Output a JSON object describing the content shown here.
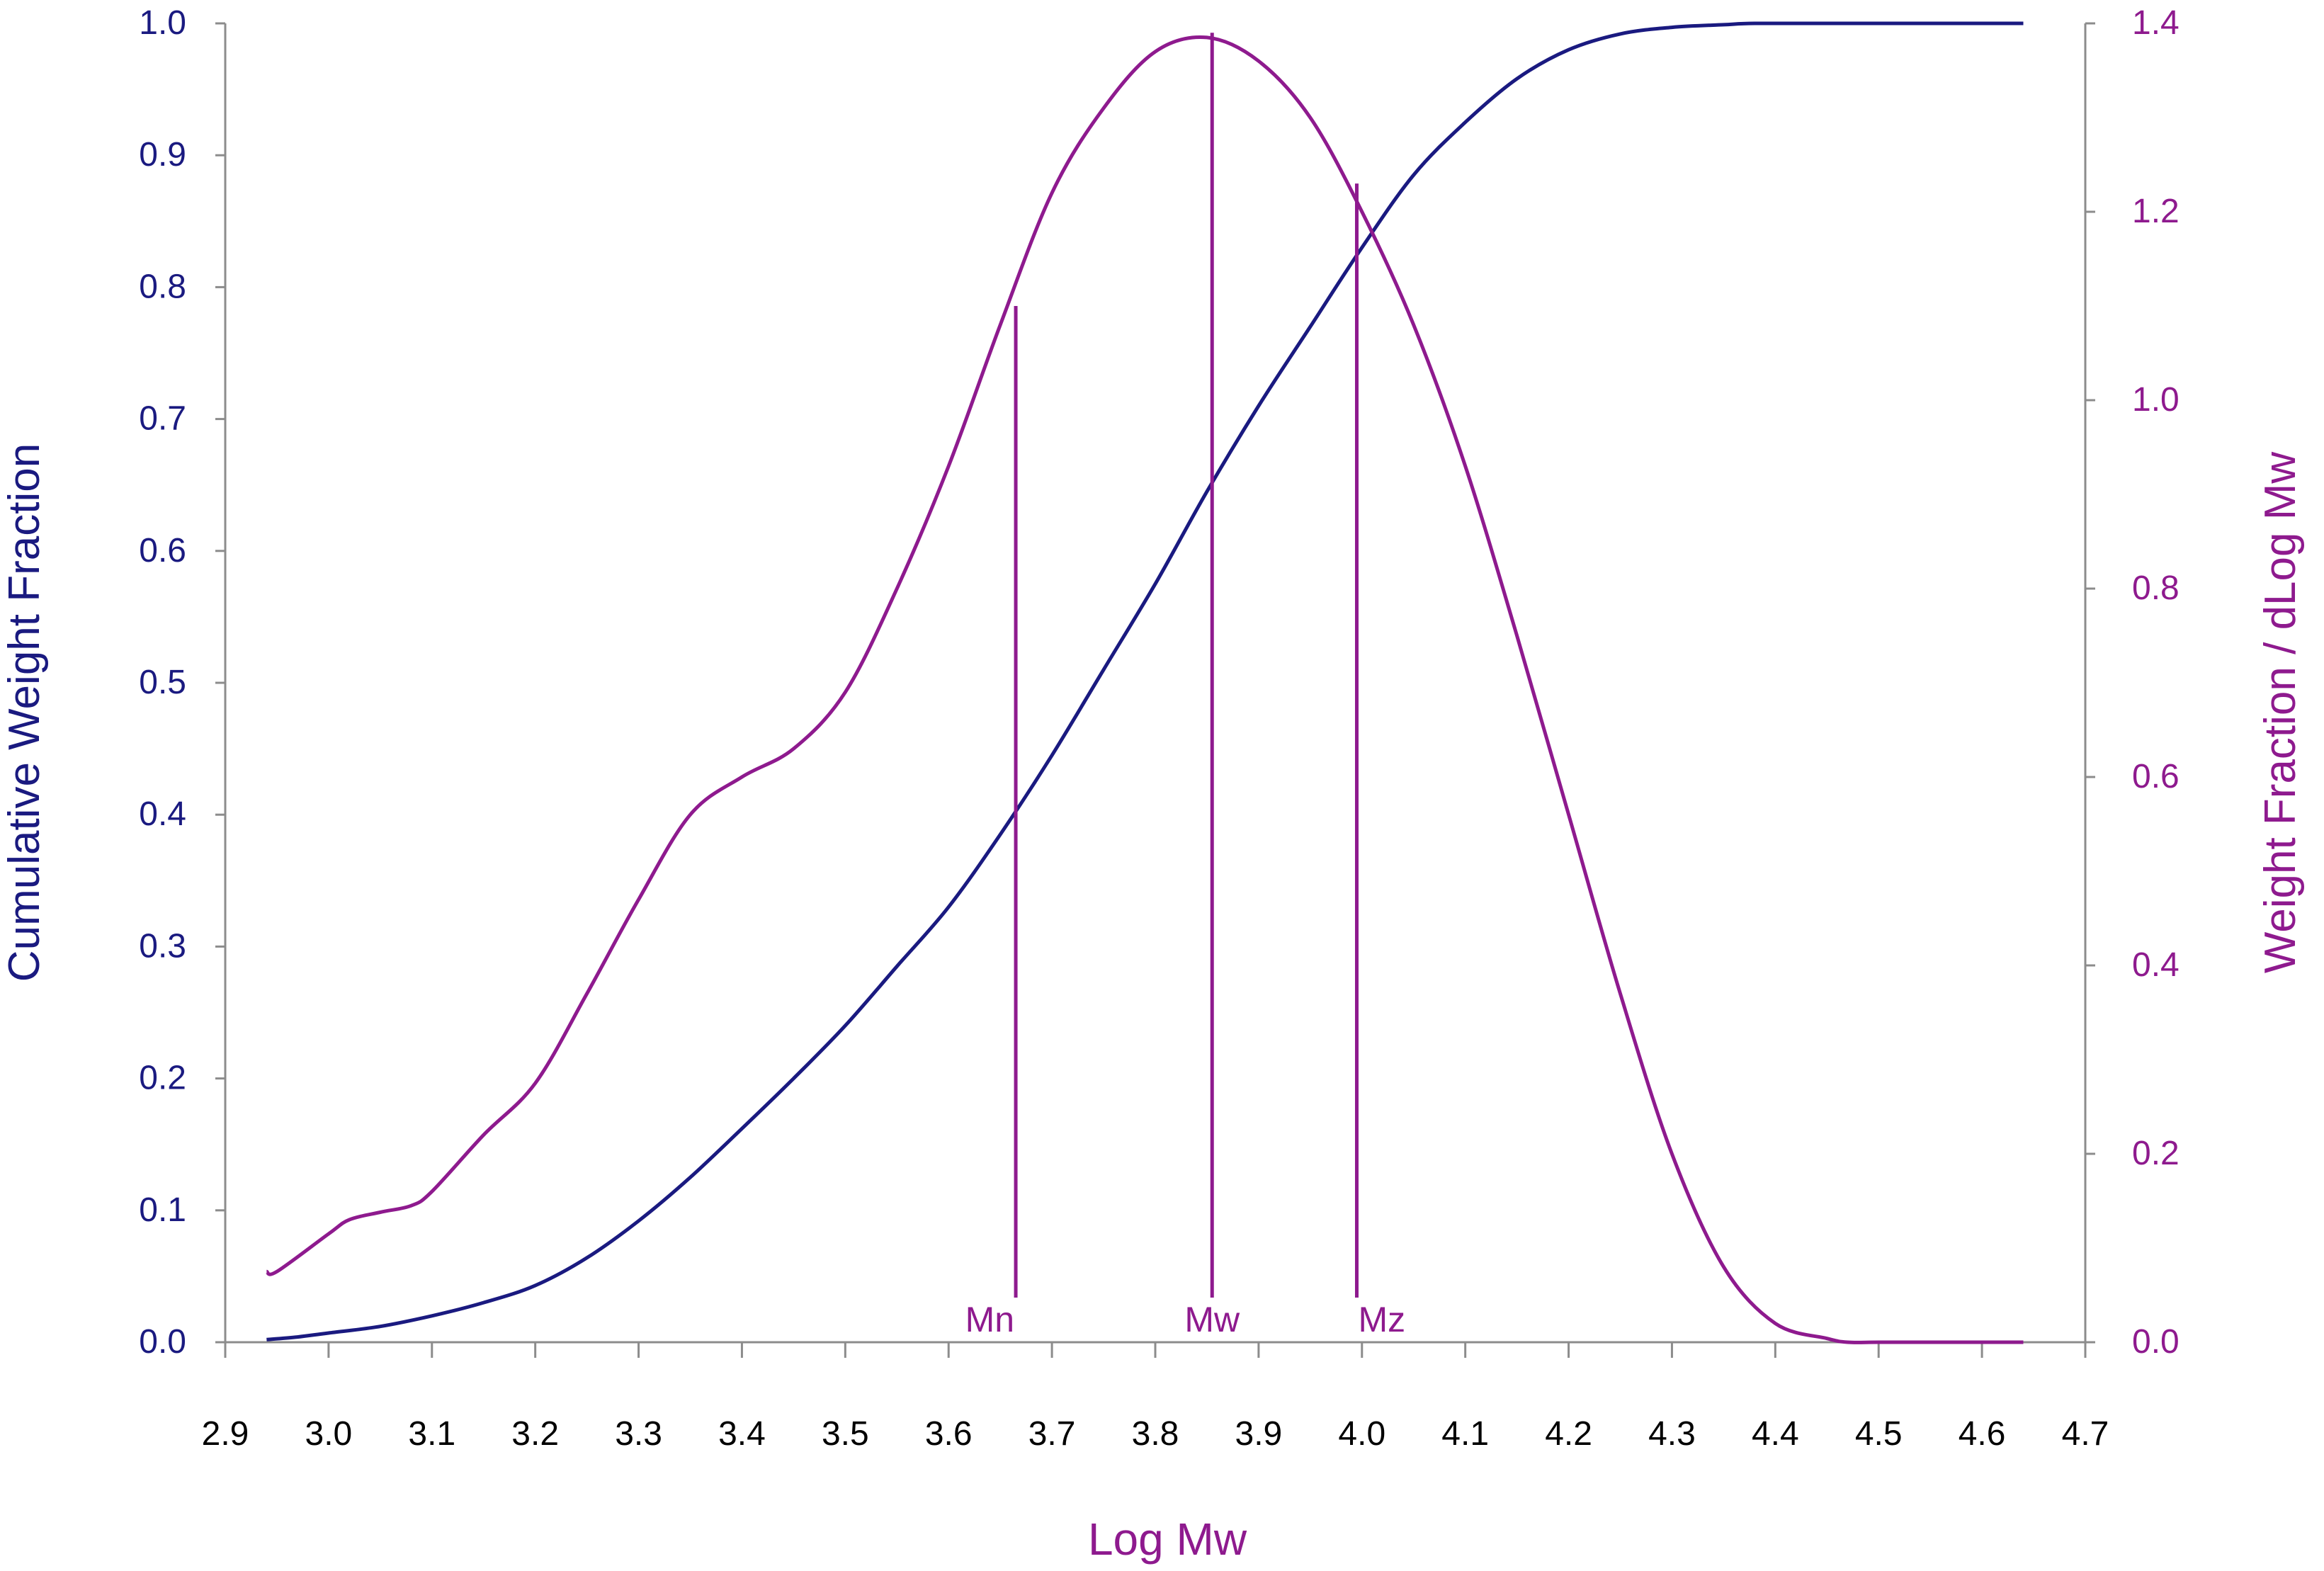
{
  "chart_data": {
    "type": "line",
    "title": "",
    "xlabel": "Log Mw",
    "ylabel_left": "Cumulative Weight Fraction",
    "ylabel_right": "Weight Fraction / dLog Mw",
    "xlim": [
      2.9,
      4.7
    ],
    "ylim_left": [
      0.0,
      1.0
    ],
    "ylim_right": [
      0.0,
      1.4
    ],
    "x_ticks": [
      "2.9",
      "3.0",
      "3.1",
      "3.2",
      "3.3",
      "3.4",
      "3.5",
      "3.6",
      "3.7",
      "3.8",
      "3.9",
      "4.0",
      "4.1",
      "4.2",
      "4.3",
      "4.4",
      "4.5",
      "4.6",
      "4.7"
    ],
    "y_left_ticks": [
      "0.0",
      "0.1",
      "0.2",
      "0.3",
      "0.4",
      "0.5",
      "0.6",
      "0.7",
      "0.8",
      "0.9",
      "1.0"
    ],
    "y_right_ticks": [
      "0.0",
      "0.2",
      "0.4",
      "0.6",
      "0.8",
      "1.0",
      "1.2",
      "1.4"
    ],
    "grid": false,
    "legend": "none",
    "colors": {
      "cumulative": "#1a1a80",
      "differential": "#8e1a8e",
      "axis": "#8c8c8c",
      "tick_text": "#000000"
    },
    "series": [
      {
        "axis": "left",
        "x": [
          2.94,
          2.97,
          3.0,
          3.05,
          3.1,
          3.15,
          3.2,
          3.25,
          3.3,
          3.35,
          3.4,
          3.45,
          3.5,
          3.55,
          3.6,
          3.65,
          3.7,
          3.75,
          3.8,
          3.85,
          3.9,
          3.95,
          4.0,
          4.05,
          4.1,
          4.15,
          4.2,
          4.25,
          4.3,
          4.35,
          4.38,
          4.45,
          4.55,
          4.64
        ],
        "values": [
          0.002,
          0.004,
          0.007,
          0.012,
          0.02,
          0.03,
          0.043,
          0.064,
          0.092,
          0.125,
          0.162,
          0.2,
          0.24,
          0.285,
          0.33,
          0.385,
          0.445,
          0.51,
          0.575,
          0.645,
          0.71,
          0.77,
          0.83,
          0.885,
          0.925,
          0.958,
          0.98,
          0.992,
          0.997,
          0.999,
          1.0,
          1.0,
          1.0,
          1.0
        ]
      },
      {
        "axis": "right",
        "x": [
          2.94,
          2.95,
          3.0,
          3.02,
          3.05,
          3.08,
          3.1,
          3.15,
          3.2,
          3.25,
          3.3,
          3.35,
          3.4,
          3.45,
          3.5,
          3.55,
          3.6,
          3.65,
          3.7,
          3.75,
          3.8,
          3.85,
          3.9,
          3.95,
          4.0,
          4.05,
          4.1,
          4.15,
          4.2,
          4.25,
          4.3,
          4.35,
          4.4,
          4.45,
          4.47,
          4.5,
          4.55,
          4.6,
          4.64
        ],
        "values": [
          0.075,
          0.075,
          0.115,
          0.13,
          0.138,
          0.145,
          0.16,
          0.22,
          0.275,
          0.37,
          0.47,
          0.56,
          0.6,
          0.63,
          0.69,
          0.8,
          0.93,
          1.08,
          1.22,
          1.31,
          1.37,
          1.385,
          1.36,
          1.3,
          1.2,
          1.08,
          0.93,
          0.75,
          0.56,
          0.37,
          0.2,
          0.08,
          0.02,
          0.004,
          0.0,
          0.0,
          0.0,
          0.0,
          0.0
        ]
      }
    ],
    "markers": [
      {
        "label": "Mn",
        "x": 3.665,
        "top": 1.1
      },
      {
        "label": "Mw",
        "x": 3.855,
        "top": 1.39
      },
      {
        "label": "Mz",
        "x": 3.995,
        "top": 1.23
      }
    ]
  }
}
